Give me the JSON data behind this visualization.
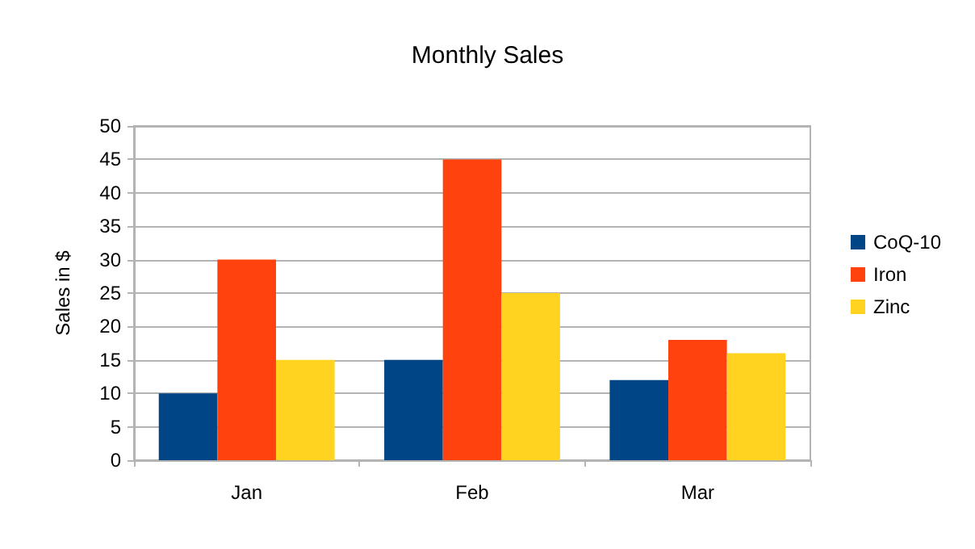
{
  "chart_data": {
    "type": "bar",
    "title": "Monthly Sales",
    "ylabel": "Sales in $",
    "categories": [
      "Jan",
      "Feb",
      "Mar"
    ],
    "series": [
      {
        "name": "CoQ-10",
        "color": "#004586",
        "values": [
          10,
          15,
          12
        ]
      },
      {
        "name": "Iron",
        "color": "#ff420e",
        "values": [
          30,
          45,
          18
        ]
      },
      {
        "name": "Zinc",
        "color": "#ffd320",
        "values": [
          15,
          25,
          16
        ]
      }
    ],
    "ylim": [
      0,
      50
    ],
    "yticks": [
      0,
      5,
      10,
      15,
      20,
      25,
      30,
      35,
      40,
      45,
      50
    ],
    "grid": "y",
    "legend": "right"
  }
}
